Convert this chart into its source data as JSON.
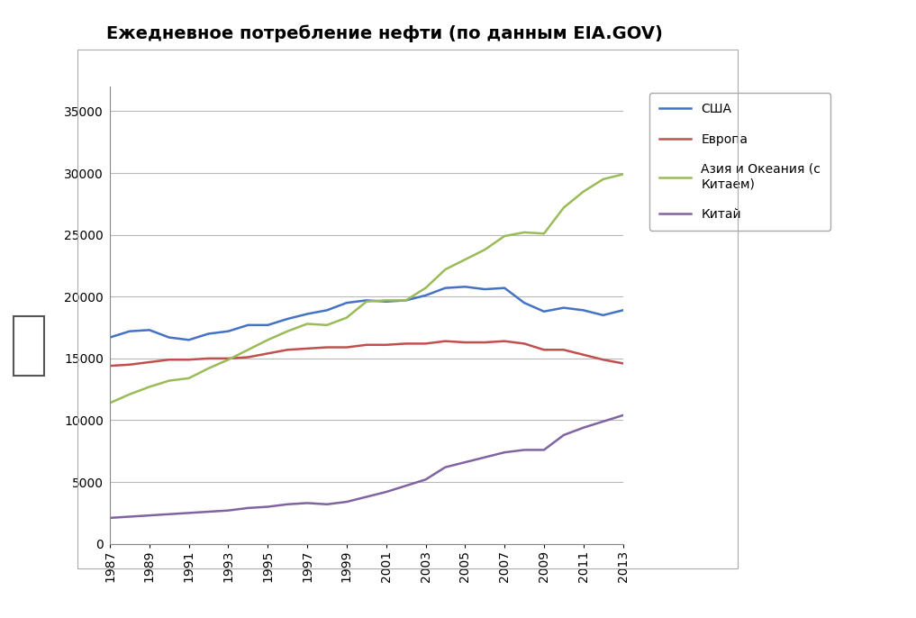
{
  "title": "Ежедневное потребление нефти (по данным EIA.GOV)",
  "years": [
    1987,
    1988,
    1989,
    1990,
    1991,
    1992,
    1993,
    1994,
    1995,
    1996,
    1997,
    1998,
    1999,
    2000,
    2001,
    2002,
    2003,
    2004,
    2005,
    2006,
    2007,
    2008,
    2009,
    2010,
    2011,
    2012,
    2013
  ],
  "usa": [
    16700,
    17200,
    17300,
    16700,
    16500,
    17000,
    17200,
    17700,
    17700,
    18200,
    18600,
    18900,
    19500,
    19700,
    19600,
    19700,
    20100,
    20700,
    20800,
    20600,
    20700,
    19500,
    18800,
    19100,
    18900,
    18500,
    18900
  ],
  "europa": [
    14400,
    14500,
    14700,
    14900,
    14900,
    15000,
    15000,
    15100,
    15400,
    15700,
    15800,
    15900,
    15900,
    16100,
    16100,
    16200,
    16200,
    16400,
    16300,
    16300,
    16400,
    16200,
    15700,
    15700,
    15300,
    14900,
    14600
  ],
  "asia": [
    11400,
    12100,
    12700,
    13200,
    13400,
    14200,
    14900,
    15700,
    16500,
    17200,
    17800,
    17700,
    18300,
    19600,
    19700,
    19700,
    20700,
    22200,
    23000,
    23800,
    24900,
    25200,
    25100,
    27200,
    28500,
    29500,
    29900
  ],
  "china": [
    2100,
    2200,
    2300,
    2400,
    2500,
    2600,
    2700,
    2900,
    3000,
    3200,
    3300,
    3200,
    3400,
    3800,
    4200,
    4700,
    5200,
    6200,
    6600,
    7000,
    7400,
    7600,
    7600,
    8800,
    9400,
    9900,
    10400
  ],
  "usa_color": "#4472C4",
  "europa_color": "#C0504D",
  "asia_color": "#9BBB59",
  "china_color": "#8064A2",
  "tick_years": [
    1987,
    1989,
    1991,
    1993,
    1995,
    1997,
    1999,
    2001,
    2003,
    2005,
    2007,
    2009,
    2011,
    2013
  ],
  "ylim": [
    0,
    37000
  ],
  "yticks": [
    0,
    5000,
    10000,
    15000,
    20000,
    25000,
    30000,
    35000
  ],
  "legend_labels": [
    "США",
    "Европа",
    "Азия и Океания (с\nКитаем)",
    "Китай"
  ],
  "background_color": "#ffffff",
  "plot_background": "#ffffff",
  "grid_color": "#b8b8b8",
  "line_width": 1.8,
  "title_fontsize": 14
}
